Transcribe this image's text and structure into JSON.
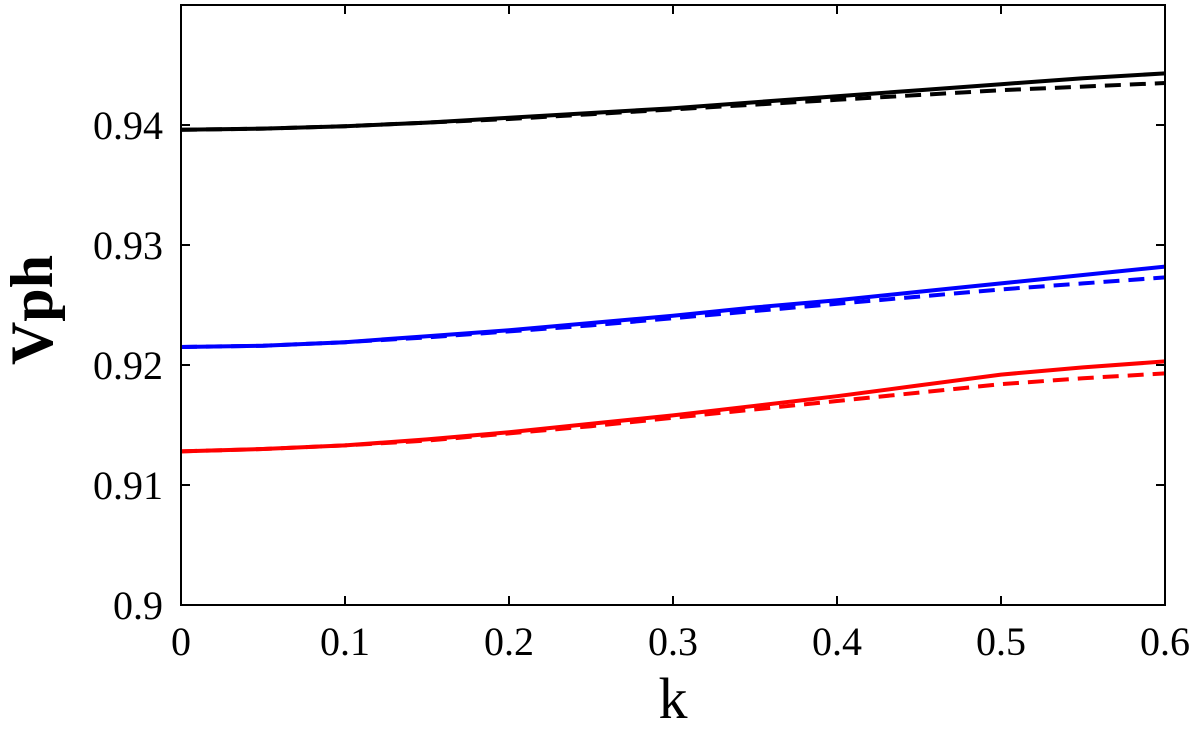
{
  "chart_data": {
    "type": "line",
    "title": "",
    "xlabel": "k",
    "ylabel": "Vph",
    "xlim": [
      0,
      0.6
    ],
    "ylim": [
      0.9,
      0.95
    ],
    "xticks": [
      0,
      0.1,
      0.2,
      0.3,
      0.4,
      0.5,
      0.6
    ],
    "xtick_labels": [
      "0",
      "0.1",
      "0.2",
      "0.3",
      "0.4",
      "0.5",
      "0.6"
    ],
    "yticks": [
      0.9,
      0.91,
      0.92,
      0.93,
      0.94
    ],
    "ytick_labels": [
      "0.9",
      "0.91",
      "0.92",
      "0.93",
      "0.94"
    ],
    "grid": false,
    "legend": "none",
    "x": [
      0,
      0.05,
      0.1,
      0.15,
      0.2,
      0.25,
      0.3,
      0.35,
      0.4,
      0.45,
      0.5,
      0.55,
      0.6
    ],
    "series": [
      {
        "color": "#000000",
        "style": "solid",
        "values": [
          0.9396,
          0.9397,
          0.9399,
          0.9402,
          0.9406,
          0.941,
          0.9414,
          0.9419,
          0.9424,
          0.9429,
          0.9434,
          0.9439,
          0.9443
        ]
      },
      {
        "color": "#000000",
        "style": "dashed",
        "values": [
          0.9396,
          0.9397,
          0.9399,
          0.9402,
          0.9405,
          0.9409,
          0.9413,
          0.9417,
          0.9421,
          0.9425,
          0.9429,
          0.9432,
          0.9435
        ]
      },
      {
        "color": "#0000ff",
        "style": "solid",
        "values": [
          0.9215,
          0.9216,
          0.9219,
          0.9224,
          0.9229,
          0.9235,
          0.9241,
          0.9248,
          0.9254,
          0.9261,
          0.9268,
          0.9275,
          0.9282
        ]
      },
      {
        "color": "#0000ff",
        "style": "dashed",
        "values": [
          0.9215,
          0.9216,
          0.9219,
          0.9223,
          0.9228,
          0.9233,
          0.9239,
          0.9245,
          0.9251,
          0.9257,
          0.9263,
          0.9268,
          0.9273
        ]
      },
      {
        "color": "#ff0000",
        "style": "solid",
        "values": [
          0.9128,
          0.913,
          0.9133,
          0.9138,
          0.9144,
          0.9151,
          0.9158,
          0.9166,
          0.9174,
          0.9183,
          0.9192,
          0.9198,
          0.9203
        ]
      },
      {
        "color": "#ff0000",
        "style": "dashed",
        "values": [
          0.9128,
          0.913,
          0.9133,
          0.9137,
          0.9143,
          0.9149,
          0.9156,
          0.9163,
          0.917,
          0.9177,
          0.9184,
          0.9189,
          0.9193
        ]
      }
    ]
  }
}
